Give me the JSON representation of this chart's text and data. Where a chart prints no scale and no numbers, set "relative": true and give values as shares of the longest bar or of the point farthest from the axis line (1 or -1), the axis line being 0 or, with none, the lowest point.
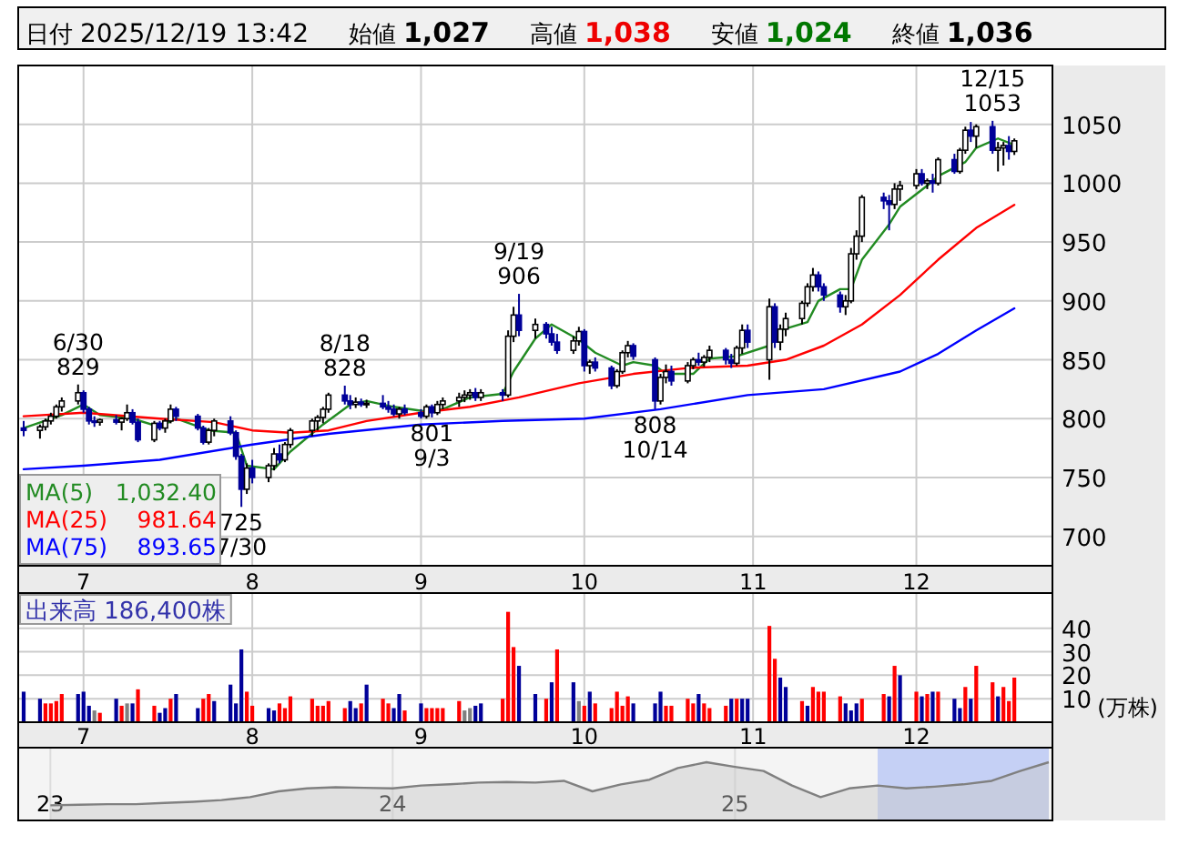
{
  "chart_data": [
    {
      "type": "candlestick",
      "annotations": [
        "日付 2025/12/19 13:42",
        "始値 1,027",
        "高値 1,038",
        "安値 1,024",
        "終値 1,036",
        {
          "text": "6/30\n829",
          "x": "2025-06-30",
          "y": 829
        },
        {
          "text": "725\n7/30",
          "x": "2025-07-30",
          "y": 725
        },
        {
          "text": "8/18\n828",
          "x": "2025-08-18",
          "y": 828
        },
        {
          "text": "801\n9/3",
          "x": "2025-09-03",
          "y": 801
        },
        {
          "text": "9/19\n906",
          "x": "2025-09-19",
          "y": 906
        },
        {
          "text": "808\n10/14",
          "x": "2025-10-14",
          "y": 808
        },
        {
          "text": "12/15\n1053",
          "x": "2025-12-15",
          "y": 1053
        }
      ],
      "x": [
        "2025-06-20",
        "2025-06-23",
        "2025-06-24",
        "2025-06-25",
        "2025-06-26",
        "2025-06-27",
        "2025-06-30",
        "2025-07-01",
        "2025-07-02",
        "2025-07-03",
        "2025-07-04",
        "2025-07-07",
        "2025-07-08",
        "2025-07-09",
        "2025-07-10",
        "2025-07-11",
        "2025-07-14",
        "2025-07-15",
        "2025-07-16",
        "2025-07-17",
        "2025-07-18",
        "2025-07-22",
        "2025-07-23",
        "2025-07-24",
        "2025-07-25",
        "2025-07-28",
        "2025-07-29",
        "2025-07-30",
        "2025-07-31",
        "2025-08-01",
        "2025-08-04",
        "2025-08-05",
        "2025-08-06",
        "2025-08-07",
        "2025-08-08",
        "2025-08-12",
        "2025-08-13",
        "2025-08-14",
        "2025-08-15",
        "2025-08-18",
        "2025-08-19",
        "2025-08-20",
        "2025-08-21",
        "2025-08-22",
        "2025-08-25",
        "2025-08-26",
        "2025-08-27",
        "2025-08-28",
        "2025-08-29",
        "2025-09-01",
        "2025-09-02",
        "2025-09-03",
        "2025-09-04",
        "2025-09-05",
        "2025-09-08",
        "2025-09-09",
        "2025-09-10",
        "2025-09-11",
        "2025-09-12",
        "2025-09-16",
        "2025-09-17",
        "2025-09-18",
        "2025-09-19",
        "2025-09-22",
        "2025-09-24",
        "2025-09-25",
        "2025-09-26",
        "2025-09-29",
        "2025-09-30",
        "2025-10-01",
        "2025-10-02",
        "2025-10-03",
        "2025-10-06",
        "2025-10-07",
        "2025-10-08",
        "2025-10-09",
        "2025-10-10",
        "2025-10-14",
        "2025-10-15",
        "2025-10-16",
        "2025-10-17",
        "2025-10-20",
        "2025-10-21",
        "2025-10-22",
        "2025-10-23",
        "2025-10-24",
        "2025-10-27",
        "2025-10-28",
        "2025-10-29",
        "2025-10-30",
        "2025-10-31",
        "2025-11-04",
        "2025-11-05",
        "2025-11-06",
        "2025-11-07",
        "2025-11-10",
        "2025-11-11",
        "2025-11-12",
        "2025-11-13",
        "2025-11-14",
        "2025-11-17",
        "2025-11-18",
        "2025-11-19",
        "2025-11-20",
        "2025-11-21",
        "2025-11-25",
        "2025-11-26",
        "2025-11-27",
        "2025-11-28",
        "2025-12-01",
        "2025-12-02",
        "2025-12-03",
        "2025-12-04",
        "2025-12-05",
        "2025-12-08",
        "2025-12-09",
        "2025-12-10",
        "2025-12-11",
        "2025-12-12",
        "2025-12-15",
        "2025-12-16",
        "2025-12-17",
        "2025-12-18",
        "2025-12-19"
      ],
      "ohlc": [
        [
          792,
          798,
          785,
          790
        ],
        [
          790,
          795,
          783,
          793
        ],
        [
          793,
          800,
          790,
          798
        ],
        [
          798,
          805,
          795,
          802
        ],
        [
          802,
          812,
          800,
          810
        ],
        [
          810,
          818,
          806,
          815
        ],
        [
          815,
          829,
          812,
          822
        ],
        [
          822,
          824,
          805,
          808
        ],
        [
          808,
          810,
          795,
          798
        ],
        [
          798,
          802,
          793,
          797
        ],
        [
          797,
          800,
          794,
          799
        ],
        [
          799,
          803,
          795,
          797
        ],
        [
          797,
          801,
          790,
          800
        ],
        [
          800,
          812,
          798,
          805
        ],
        [
          805,
          808,
          795,
          797
        ],
        [
          797,
          800,
          780,
          782
        ],
        [
          782,
          798,
          780,
          796
        ],
        [
          796,
          798,
          790,
          792
        ],
        [
          792,
          800,
          788,
          798
        ],
        [
          798,
          812,
          796,
          808
        ],
        [
          808,
          810,
          798,
          802
        ],
        [
          802,
          804,
          790,
          792
        ],
        [
          792,
          794,
          778,
          780
        ],
        [
          780,
          792,
          778,
          790
        ],
        [
          790,
          800,
          785,
          798
        ],
        [
          798,
          802,
          786,
          788
        ],
        [
          788,
          790,
          765,
          768
        ],
        [
          768,
          770,
          725,
          740
        ],
        [
          740,
          762,
          736,
          758
        ],
        [
          758,
          765,
          745,
          750
        ],
        [
          750,
          762,
          746,
          760
        ],
        [
          760,
          775,
          756,
          770
        ],
        [
          770,
          778,
          762,
          765
        ],
        [
          765,
          780,
          763,
          778
        ],
        [
          778,
          792,
          775,
          790
        ],
        [
          790,
          800,
          785,
          798
        ],
        [
          798,
          803,
          790,
          801
        ],
        [
          801,
          810,
          796,
          808
        ],
        [
          808,
          822,
          805,
          820
        ],
        [
          820,
          828,
          812,
          815
        ],
        [
          815,
          820,
          808,
          812
        ],
        [
          812,
          818,
          809,
          814
        ],
        [
          814,
          817,
          810,
          812
        ],
        [
          812,
          816,
          809,
          813
        ],
        [
          813,
          820,
          808,
          810
        ],
        [
          810,
          815,
          805,
          808
        ],
        [
          808,
          812,
          802,
          804
        ],
        [
          804,
          810,
          800,
          808
        ],
        [
          808,
          812,
          803,
          805
        ],
        [
          805,
          808,
          800,
          802
        ],
        [
          802,
          812,
          800,
          810
        ],
        [
          810,
          812,
          801,
          805
        ],
        [
          805,
          815,
          803,
          812
        ],
        [
          812,
          818,
          808,
          815
        ],
        [
          815,
          822,
          810,
          818
        ],
        [
          818,
          824,
          814,
          820
        ],
        [
          820,
          825,
          816,
          822
        ],
        [
          822,
          826,
          815,
          818
        ],
        [
          818,
          825,
          815,
          822
        ],
        [
          822,
          825,
          815,
          820
        ],
        [
          820,
          875,
          818,
          870
        ],
        [
          870,
          895,
          865,
          888
        ],
        [
          888,
          906,
          870,
          875
        ],
        [
          875,
          885,
          868,
          880
        ],
        [
          880,
          882,
          868,
          872
        ],
        [
          872,
          878,
          862,
          865
        ],
        [
          865,
          872,
          855,
          858
        ],
        [
          858,
          870,
          855,
          866
        ],
        [
          866,
          878,
          862,
          874
        ],
        [
          874,
          876,
          840,
          845
        ],
        [
          845,
          850,
          838,
          848
        ],
        [
          848,
          852,
          840,
          843
        ],
        [
          843,
          845,
          825,
          828
        ],
        [
          828,
          842,
          826,
          840
        ],
        [
          840,
          858,
          838,
          856
        ],
        [
          856,
          866,
          852,
          862
        ],
        [
          862,
          864,
          850,
          853
        ],
        [
          850,
          852,
          808,
          815
        ],
        [
          815,
          838,
          812,
          835
        ],
        [
          835,
          846,
          830,
          840
        ],
        [
          840,
          845,
          828,
          832
        ],
        [
          832,
          848,
          830,
          845
        ],
        [
          845,
          852,
          842,
          850
        ],
        [
          850,
          856,
          845,
          848
        ],
        [
          848,
          854,
          844,
          852
        ],
        [
          852,
          862,
          848,
          858
        ],
        [
          858,
          860,
          846,
          850
        ],
        [
          850,
          855,
          843,
          847
        ],
        [
          847,
          862,
          845,
          860
        ],
        [
          860,
          880,
          855,
          875
        ],
        [
          875,
          880,
          860,
          865
        ],
        [
          850,
          902,
          833,
          895
        ],
        [
          895,
          898,
          860,
          865
        ],
        [
          865,
          880,
          858,
          876
        ],
        [
          876,
          890,
          870,
          885
        ],
        [
          885,
          900,
          880,
          898
        ],
        [
          898,
          915,
          895,
          912
        ],
        [
          912,
          928,
          908,
          922
        ],
        [
          922,
          925,
          908,
          912
        ],
        [
          912,
          915,
          900,
          905
        ],
        [
          905,
          908,
          890,
          895
        ],
        [
          895,
          905,
          888,
          900
        ],
        [
          900,
          945,
          898,
          940
        ],
        [
          940,
          960,
          935,
          955
        ],
        [
          955,
          990,
          950,
          988
        ],
        [
          988,
          992,
          978,
          985
        ],
        [
          985,
          990,
          960,
          982
        ],
        [
          982,
          1000,
          978,
          995
        ],
        [
          995,
          1002,
          985,
          998
        ],
        [
          998,
          1012,
          995,
          1008
        ],
        [
          1008,
          1012,
          998,
          1000
        ],
        [
          1000,
          1004,
          995,
          1002
        ],
        [
          1002,
          1008,
          992,
          1000
        ],
        [
          1000,
          1022,
          998,
          1020
        ],
        [
          1020,
          1025,
          1008,
          1010
        ],
        [
          1010,
          1030,
          1008,
          1028
        ],
        [
          1028,
          1048,
          1025,
          1045
        ],
        [
          1045,
          1052,
          1035,
          1040
        ],
        [
          1040,
          1050,
          1030,
          1048
        ],
        [
          1048,
          1053,
          1025,
          1028
        ],
        [
          1028,
          1035,
          1010,
          1030
        ],
        [
          1030,
          1035,
          1015,
          1032
        ],
        [
          1032,
          1040,
          1020,
          1027
        ],
        [
          1027,
          1038,
          1024,
          1036
        ]
      ],
      "series": [
        {
          "type": "line",
          "name": "MA(5) 1,032.40",
          "color": "#228b22",
          "x": [
            "2025-06-20",
            "2025-06-27",
            "2025-07-01",
            "2025-07-04",
            "2025-07-10",
            "2025-07-15",
            "2025-07-18",
            "2025-07-24",
            "2025-07-29",
            "2025-07-31",
            "2025-08-05",
            "2025-08-08",
            "2025-08-14",
            "2025-08-19",
            "2025-08-22",
            "2025-08-27",
            "2025-09-02",
            "2025-09-05",
            "2025-09-10",
            "2025-09-16",
            "2025-09-18",
            "2025-09-22",
            "2025-09-25",
            "2025-09-30",
            "2025-10-03",
            "2025-10-08",
            "2025-10-10",
            "2025-10-14",
            "2025-10-16",
            "2025-10-21",
            "2025-10-24",
            "2025-10-29",
            "2025-11-04",
            "2025-11-06",
            "2025-11-11",
            "2025-11-13",
            "2025-11-17",
            "2025-11-19",
            "2025-11-21",
            "2025-11-26",
            "2025-11-28",
            "2025-12-03",
            "2025-12-05",
            "2025-12-10",
            "2025-12-12",
            "2025-12-16",
            "2025-12-19"
          ],
          "values": [
            792,
            803,
            812,
            803,
            800,
            793,
            800,
            790,
            788,
            760,
            757,
            772,
            795,
            812,
            815,
            810,
            806,
            808,
            818,
            821,
            840,
            868,
            880,
            867,
            856,
            845,
            848,
            845,
            838,
            838,
            851,
            853,
            862,
            875,
            882,
            900,
            910,
            910,
            935,
            965,
            980,
            998,
            1006,
            1018,
            1030,
            1038,
            1032.4
          ]
        },
        {
          "type": "line",
          "name": "MA(25) 981.64",
          "color": "#ff0000",
          "x": [
            "2025-06-20",
            "2025-07-01",
            "2025-07-15",
            "2025-07-25",
            "2025-08-01",
            "2025-08-08",
            "2025-08-15",
            "2025-08-22",
            "2025-09-01",
            "2025-09-10",
            "2025-09-19",
            "2025-09-30",
            "2025-10-10",
            "2025-10-20",
            "2025-10-31",
            "2025-11-07",
            "2025-11-14",
            "2025-11-21",
            "2025-11-28",
            "2025-12-05",
            "2025-12-12",
            "2025-12-19"
          ],
          "values": [
            802,
            805,
            800,
            797,
            790,
            788,
            790,
            798,
            805,
            810,
            818,
            830,
            838,
            843,
            845,
            850,
            862,
            880,
            905,
            935,
            962,
            981.64
          ]
        },
        {
          "type": "line",
          "name": "MA(75) 893.65",
          "color": "#0000ff",
          "x": [
            "2025-06-20",
            "2025-07-01",
            "2025-07-15",
            "2025-08-01",
            "2025-08-15",
            "2025-09-01",
            "2025-09-16",
            "2025-10-01",
            "2025-10-15",
            "2025-10-31",
            "2025-11-14",
            "2025-11-28",
            "2025-12-05",
            "2025-12-12",
            "2025-12-19"
          ],
          "values": [
            757,
            760,
            765,
            778,
            787,
            795,
            798,
            800,
            808,
            820,
            825,
            840,
            855,
            875,
            893.65
          ]
        }
      ],
      "xlim": [
        "2025-06-19",
        "2025-12-26"
      ],
      "xticks": [
        {
          "value": "2025-07-01",
          "label": "7"
        },
        {
          "value": "2025-08-01",
          "label": "8"
        },
        {
          "value": "2025-09-01",
          "label": "9"
        },
        {
          "value": "2025-10-01",
          "label": "10"
        },
        {
          "value": "2025-11-01",
          "label": "11"
        },
        {
          "value": "2025-12-01",
          "label": "12"
        }
      ],
      "ylim": [
        675,
        1100
      ],
      "yticks": [
        700,
        750,
        800,
        850,
        900,
        950,
        1000,
        1050
      ],
      "grid": true,
      "legend": "bottom left"
    },
    {
      "type": "bar",
      "annotations": [
        "出来高 186,400株"
      ],
      "ylabel": "(万株)",
      "x": [
        "2025-06-20",
        "2025-06-23",
        "2025-06-24",
        "2025-06-25",
        "2025-06-26",
        "2025-06-27",
        "2025-06-30",
        "2025-07-01",
        "2025-07-02",
        "2025-07-03",
        "2025-07-04",
        "2025-07-07",
        "2025-07-08",
        "2025-07-09",
        "2025-07-10",
        "2025-07-11",
        "2025-07-14",
        "2025-07-15",
        "2025-07-16",
        "2025-07-17",
        "2025-07-18",
        "2025-07-22",
        "2025-07-23",
        "2025-07-24",
        "2025-07-25",
        "2025-07-28",
        "2025-07-29",
        "2025-07-30",
        "2025-07-31",
        "2025-08-01",
        "2025-08-04",
        "2025-08-05",
        "2025-08-06",
        "2025-08-07",
        "2025-08-08",
        "2025-08-12",
        "2025-08-13",
        "2025-08-14",
        "2025-08-15",
        "2025-08-18",
        "2025-08-19",
        "2025-08-20",
        "2025-08-21",
        "2025-08-22",
        "2025-08-25",
        "2025-08-26",
        "2025-08-27",
        "2025-08-28",
        "2025-08-29",
        "2025-09-01",
        "2025-09-02",
        "2025-09-03",
        "2025-09-04",
        "2025-09-05",
        "2025-09-08",
        "2025-09-09",
        "2025-09-10",
        "2025-09-11",
        "2025-09-12",
        "2025-09-16",
        "2025-09-17",
        "2025-09-18",
        "2025-09-19",
        "2025-09-22",
        "2025-09-24",
        "2025-09-25",
        "2025-09-26",
        "2025-09-29",
        "2025-09-30",
        "2025-10-01",
        "2025-10-02",
        "2025-10-03",
        "2025-10-06",
        "2025-10-07",
        "2025-10-08",
        "2025-10-09",
        "2025-10-10",
        "2025-10-14",
        "2025-10-15",
        "2025-10-16",
        "2025-10-17",
        "2025-10-20",
        "2025-10-21",
        "2025-10-22",
        "2025-10-23",
        "2025-10-24",
        "2025-10-27",
        "2025-10-28",
        "2025-10-29",
        "2025-10-30",
        "2025-10-31",
        "2025-11-04",
        "2025-11-05",
        "2025-11-06",
        "2025-11-07",
        "2025-11-10",
        "2025-11-11",
        "2025-11-12",
        "2025-11-13",
        "2025-11-14",
        "2025-11-17",
        "2025-11-18",
        "2025-11-19",
        "2025-11-20",
        "2025-11-21",
        "2025-11-25",
        "2025-11-26",
        "2025-11-27",
        "2025-11-28",
        "2025-12-01",
        "2025-12-02",
        "2025-12-03",
        "2025-12-04",
        "2025-12-05",
        "2025-12-08",
        "2025-12-09",
        "2025-12-10",
        "2025-12-11",
        "2025-12-12",
        "2025-12-15",
        "2025-12-16",
        "2025-12-17",
        "2025-12-18",
        "2025-12-19"
      ],
      "values": [
        13,
        10,
        8,
        8,
        9,
        12,
        12,
        13,
        7,
        5,
        4,
        10,
        7,
        8,
        8,
        14,
        7,
        4,
        6,
        10,
        12,
        6,
        10,
        12,
        9,
        16,
        8,
        31,
        13,
        7,
        6,
        5,
        8,
        6,
        11,
        10,
        7,
        7,
        9,
        6,
        9,
        6,
        8,
        16,
        10,
        8,
        6,
        12,
        5,
        8,
        6,
        6,
        6,
        6,
        9,
        5,
        6,
        7,
        8,
        10,
        47,
        32,
        24,
        12,
        10,
        17,
        31,
        17,
        9,
        7,
        13,
        8,
        6,
        13,
        7,
        11,
        8,
        8,
        13,
        7,
        7,
        10,
        8,
        12,
        8,
        6,
        7,
        10,
        10,
        10,
        10,
        41,
        27,
        19,
        15,
        9,
        7,
        15,
        13,
        13,
        11,
        8,
        5,
        8,
        10,
        12,
        11,
        24,
        20,
        13,
        11,
        12,
        13,
        13,
        10,
        6,
        15,
        10,
        24,
        17,
        11,
        15,
        9,
        19
      ],
      "colors": [
        "#000099",
        "#000099",
        "#ff0000",
        "#ff0000",
        "#ff0000",
        "#ff0000",
        "#000099",
        "#000099",
        "#000099",
        "#808080",
        "#ff0000",
        "#000099",
        "#ff0000",
        "#808080",
        "#000099",
        "#ff0000",
        "#ff0000",
        "#000099",
        "#000099",
        "#ff0000",
        "#000099",
        "#000099",
        "#ff0000",
        "#ff0000",
        "#000099",
        "#000099",
        "#000099",
        "#000099",
        "#ff0000",
        "#ff0000",
        "#000099",
        "#000099",
        "#ff0000",
        "#ff0000",
        "#ff0000",
        "#ff0000",
        "#ff0000",
        "#ff0000",
        "#ff0000",
        "#ff0000",
        "#000099",
        "#000099",
        "#ff0000",
        "#000099",
        "#ff0000",
        "#ff0000",
        "#000099",
        "#000099",
        "#ff0000",
        "#000099",
        "#ff0000",
        "#ff0000",
        "#ff0000",
        "#ff0000",
        "#ff0000",
        "#808080",
        "#808080",
        "#000099",
        "#000099",
        "#ff0000",
        "#ff0000",
        "#ff0000",
        "#000099",
        "#000099",
        "#ff0000",
        "#000099",
        "#ff0000",
        "#000099",
        "#808080",
        "#ff0000",
        "#000099",
        "#ff0000",
        "#ff0000",
        "#ff0000",
        "#ff0000",
        "#ff0000",
        "#000099",
        "#000099",
        "#000099",
        "#ff0000",
        "#ff0000",
        "#ff0000",
        "#ff0000",
        "#000099",
        "#ff0000",
        "#ff0000",
        "#ff0000",
        "#000099",
        "#ff0000",
        "#000099",
        "#000099",
        "#ff0000",
        "#ff0000",
        "#000099",
        "#000099",
        "#ff0000",
        "#000099",
        "#ff0000",
        "#ff0000",
        "#ff0000",
        "#ff0000",
        "#000099",
        "#000099",
        "#000099",
        "#ff0000",
        "#ff0000",
        "#000099",
        "#ff0000",
        "#000099",
        "#ff0000",
        "#000099",
        "#ff0000",
        "#000099",
        "#ff0000",
        "#000099",
        "#000099",
        "#ff0000",
        "#000099",
        "#ff0000",
        "#ff0000",
        "#000099",
        "#ff0000",
        "#ff0000",
        "#ff0000"
      ],
      "xlim": [
        "2025-06-19",
        "2025-12-26"
      ],
      "xticks": [
        {
          "value": "2025-07-01",
          "label": "7"
        },
        {
          "value": "2025-08-01",
          "label": "8"
        },
        {
          "value": "2025-09-01",
          "label": "9"
        },
        {
          "value": "2025-10-01",
          "label": "10"
        },
        {
          "value": "2025-11-01",
          "label": "11"
        },
        {
          "value": "2025-12-01",
          "label": "12"
        }
      ],
      "ylim": [
        0,
        55
      ],
      "yticks": [
        10,
        20,
        30,
        40
      ],
      "grid": true
    },
    {
      "type": "area",
      "relative": true,
      "color": "#808080",
      "x": [
        "2023-01",
        "2023-02",
        "2023-03",
        "2023-04",
        "2023-05",
        "2023-06",
        "2023-07",
        "2023-08",
        "2023-09",
        "2023-10",
        "2023-11",
        "2023-12",
        "2024-01",
        "2024-02",
        "2024-03",
        "2024-04",
        "2024-05",
        "2024-06",
        "2024-07",
        "2024-08",
        "2024-09",
        "2024-10",
        "2024-11",
        "2024-12",
        "2025-01",
        "2025-02",
        "2025-03",
        "2025-04",
        "2025-05",
        "2025-06",
        "2025-07",
        "2025-08",
        "2025-09",
        "2025-10",
        "2025-11",
        "2025-12"
      ],
      "values": [
        0.26,
        0.27,
        0.28,
        0.28,
        0.3,
        0.32,
        0.35,
        0.4,
        0.5,
        0.55,
        0.57,
        0.56,
        0.55,
        0.6,
        0.62,
        0.65,
        0.66,
        0.65,
        0.68,
        0.5,
        0.62,
        0.7,
        0.9,
        1.0,
        0.92,
        0.85,
        0.6,
        0.4,
        0.55,
        0.6,
        0.55,
        0.58,
        0.62,
        0.68,
        0.85,
        1.0
      ],
      "xlim": [
        "2022-12",
        "2025-12"
      ],
      "grid": "x",
      "xticks": [
        {
          "value": "2023-01",
          "label": "23"
        },
        {
          "value": "2024-01",
          "label": "24"
        },
        {
          "value": "2025-01",
          "label": "25"
        }
      ],
      "bands": [
        {
          "axis": "x",
          "from": "2025-06",
          "to": "2025-12",
          "color": "#c0ccf5"
        }
      ]
    }
  ]
}
